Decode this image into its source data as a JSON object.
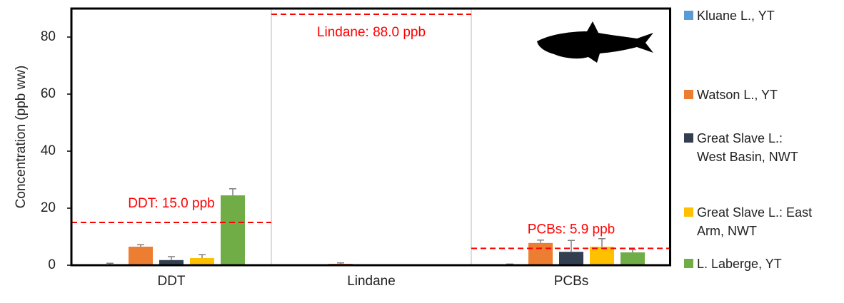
{
  "chart_data": {
    "type": "bar",
    "y_label": "Concentration (ppb ww)",
    "categories": [
      "DDT",
      "Lindane",
      "PCBs"
    ],
    "ylim": [
      0,
      90
    ],
    "yticks": [
      0,
      20,
      40,
      60,
      80
    ],
    "series": [
      {
        "name": "Kluane L., YT",
        "color": "#5b9bd5",
        "values": [
          0.3,
          0,
          0.2
        ],
        "errors": [
          0.4,
          0,
          0.2
        ]
      },
      {
        "name": "Watson L., YT",
        "color": "#ed7d31",
        "values": [
          6.5,
          0.5,
          7.8
        ],
        "errors": [
          0.7,
          0.3,
          1.0
        ]
      },
      {
        "name": "Great Slave L.: West Basin, NWT",
        "color": "#333f50",
        "values": [
          1.8,
          0.1,
          4.7
        ],
        "errors": [
          1.2,
          0,
          4.0
        ]
      },
      {
        "name": "Great Slave L.: East Arm, NWT",
        "color": "#ffc000",
        "values": [
          2.5,
          0.1,
          6.5
        ],
        "errors": [
          1.2,
          0,
          2.8
        ]
      },
      {
        "name": "L. Laberge, YT",
        "color": "#70ad47",
        "values": [
          24.5,
          0.1,
          4.5
        ],
        "errors": [
          2.3,
          0,
          1.0
        ]
      }
    ],
    "reference_lines": [
      {
        "value": 15.0,
        "label": "DDT: 15.0 ppb"
      },
      {
        "value": 88.0,
        "label": "Lindane: 88.0 ppb"
      },
      {
        "value": 5.9,
        "label": "PCBs: 5.9 ppb"
      }
    ],
    "reference_color": "#ff0000"
  }
}
